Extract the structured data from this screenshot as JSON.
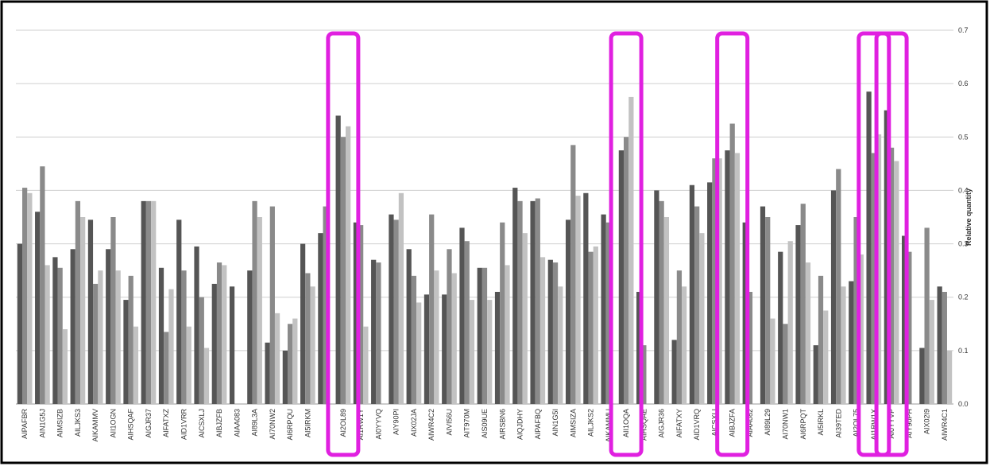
{
  "chart_data": {
    "type": "bar",
    "y_label": "Relative quantity",
    "categories": [
      "AIPAFBR",
      "AIN1G5J",
      "AIMSIZB",
      "AILJKS3",
      "AIKAMMV",
      "AII1OGN",
      "AIHSQAF",
      "AIGJR37",
      "AIFATXZ",
      "AID1VRR",
      "AICSXLJ",
      "AIBJZFB",
      "AIAA083",
      "AI89L3A",
      "AI70NW2",
      "AI6RPQU",
      "AI5IRKM",
      null,
      "AI2OL89",
      "AI1RW1Y",
      "AI0YYVQ",
      "AIY90PI",
      "AIX02JA",
      "AIWR4C2",
      "AIVI56U",
      "AIT970M",
      "AIS09UE",
      "AIRSBN6",
      "AIQJDHY",
      "AIPAFBQ",
      "AIN1G5I",
      "AIMSIZA",
      "AILJKS2",
      "AIKAMMU",
      "AII1OQA",
      "AIHSQAE",
      "AIGJR36",
      "AIFATXY",
      "AID1VRQ",
      "AICSXLI",
      "AIBJZFA",
      "AIAA082",
      "AI89L29",
      "AI70NW1",
      "AI6RPQT",
      "AI5IRKL",
      "AI39TED",
      "AI2OL75",
      "AI1RW1X",
      "AI0YYVP",
      "AIY90PH",
      "AIX02I9",
      "AIWR4C1"
    ],
    "series": [
      {
        "color": "#555555",
        "values": [
          0.3,
          0.36,
          0.275,
          0.29,
          0.345,
          0.29,
          0.195,
          0.38,
          0.255,
          0.345,
          0.295,
          0.225,
          0.22,
          0.25,
          0.115,
          0.1,
          0.3,
          0.32,
          0.54,
          0.34,
          0.27,
          0.355,
          0.29,
          0.205,
          0.205,
          0.33,
          0.255,
          0.21,
          0.405,
          0.38,
          0.27,
          0.345,
          0.395,
          0.355,
          0.475,
          0.21,
          0.4,
          0.12,
          0.41,
          0.415,
          0.475,
          0.34,
          0.37,
          0.285,
          0.335,
          0.11,
          0.4,
          0.23,
          0.585,
          0.55,
          0.315,
          0.105,
          0.22
        ]
      },
      {
        "color": "#8a8a8a",
        "values": [
          0.405,
          0.445,
          0.255,
          0.38,
          0.225,
          0.35,
          0.24,
          0.38,
          0.135,
          0.25,
          0.2,
          0.265,
          null,
          0.38,
          0.37,
          0.15,
          0.245,
          0.37,
          0.5,
          0.335,
          0.265,
          0.345,
          0.24,
          0.355,
          0.29,
          0.305,
          0.255,
          0.34,
          0.38,
          0.385,
          0.265,
          0.485,
          0.285,
          0.34,
          0.5,
          0.11,
          0.38,
          0.25,
          0.37,
          0.46,
          0.525,
          0.21,
          0.35,
          0.15,
          0.375,
          0.24,
          0.44,
          0.35,
          0.47,
          0.48,
          0.285,
          0.33,
          0.21
        ]
      },
      {
        "color": "#c2c2c2",
        "values": [
          0.395,
          0.26,
          0.14,
          0.35,
          0.25,
          0.25,
          0.145,
          0.38,
          0.215,
          0.145,
          0.105,
          0.26,
          null,
          0.35,
          0.17,
          0.16,
          0.22,
          null,
          0.52,
          0.145,
          null,
          0.395,
          0.19,
          0.25,
          0.245,
          0.195,
          0.195,
          0.26,
          0.32,
          0.275,
          0.22,
          0.39,
          0.295,
          null,
          0.575,
          null,
          0.35,
          0.22,
          0.32,
          0.46,
          0.47,
          null,
          0.16,
          0.305,
          0.265,
          0.175,
          0.22,
          0.28,
          0.505,
          0.455,
          null,
          0.195,
          0.1
        ]
      }
    ],
    "ylim": [
      0,
      0.7
    ],
    "yticks": [
      {
        "value": 0,
        "label": "0.0"
      },
      0.1,
      0.2,
      0.3,
      0.4,
      0.5,
      0.6,
      0.7
    ],
    "grid": true,
    "highlight_color": "#e020e0",
    "highlight_indices": [
      18,
      34,
      40,
      48,
      49
    ]
  }
}
